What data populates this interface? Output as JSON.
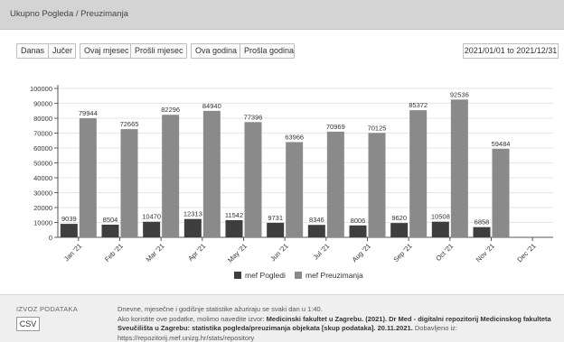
{
  "panel": {
    "title": "Ukupno Pogleda / Preuzimanja"
  },
  "filters": {
    "group1": [
      "Danas",
      "Jučer"
    ],
    "group2": [
      "Ovaj mjesec",
      "Prošli mjesec"
    ],
    "group3": [
      "Ova godina",
      "Prošla godina"
    ],
    "date_range": "2021/01/01 to 2021/12/31"
  },
  "colors": {
    "pogledi": "#3e3e3e",
    "preuzimanja": "#8a8a8a",
    "grid": "#e6e6e6"
  },
  "chart_data": {
    "type": "bar",
    "categories": [
      "Jan '21",
      "Feb '21",
      "Mar '21",
      "Apr '21",
      "May '21",
      "Jun '21",
      "Jul '21",
      "Aug '21",
      "Sep '21",
      "Oct '21",
      "Nov '21",
      "Dec '21"
    ],
    "series": [
      {
        "name": "mef Pogledi",
        "values": [
          9039,
          8504,
          10470,
          12313,
          11542,
          9731,
          8346,
          8006,
          9620,
          10508,
          6858,
          null
        ]
      },
      {
        "name": "mef Preuzimanja",
        "values": [
          79944,
          72665,
          82296,
          84940,
          77396,
          63966,
          70969,
          70125,
          85372,
          92536,
          59484,
          null
        ]
      }
    ],
    "yticks": [
      0,
      10000,
      20000,
      30000,
      40000,
      50000,
      60000,
      70000,
      80000,
      90000,
      100000
    ],
    "ylim": [
      0,
      100000
    ],
    "grid": true,
    "legend": "bottom",
    "title": "",
    "xlabel": "",
    "ylabel": ""
  },
  "footer": {
    "export_label": "IZVOZ PODATAKA",
    "csv_label": "CSV",
    "line1": "Dnevne, mjesečne i godišnje statistike ažuriraju se svaki dan u 1:40.",
    "line2a": "Ako koristite ove podatke, molimo navedite izvor: ",
    "line2b": "Medicinski fakultet u Zagrebu. (2021). Dr Med - digitalni repozitorij Medicinskog fakulteta",
    "line3a": "Sveučilišta u Zagrebu: statistika pogleda/preuzimanja objekata [skup podataka]. 20.11.2021. ",
    "line3b": "Dobavljeno iz:",
    "line4": "https://repozitorij.mef.unizg.hr/stats/repository"
  }
}
